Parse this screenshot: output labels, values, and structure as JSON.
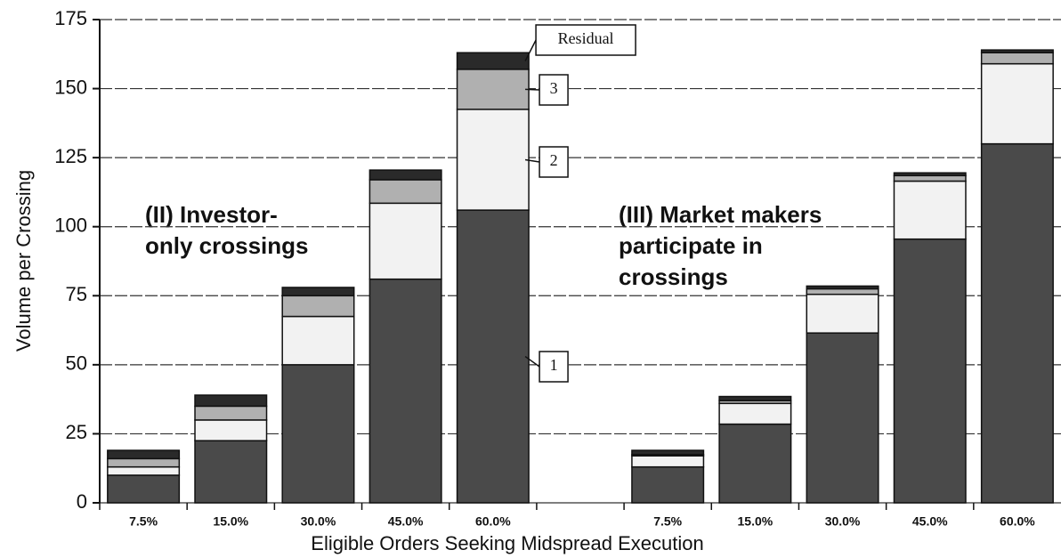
{
  "chart_data": {
    "type": "stacked_bar",
    "x_label": "Eligible Orders Seeking Midspread Execution",
    "y_label": "Volume per Crossing",
    "categories": [
      "7.5%",
      "15.0%",
      "30.0%",
      "45.0%",
      "60.0%",
      null,
      "7.5%",
      "15.0%",
      "30.0%",
      "45.0%",
      "60.0%"
    ],
    "series": [
      {
        "name": "1",
        "color": "#4a4a4a",
        "values": [
          10,
          22.5,
          50,
          81,
          106,
          null,
          13,
          28.5,
          61.5,
          95.5,
          130
        ]
      },
      {
        "name": "2",
        "color": "#f2f2f2",
        "values": [
          3,
          7.5,
          17.5,
          27.5,
          36.5,
          null,
          4,
          7.5,
          14,
          21,
          29
        ]
      },
      {
        "name": "3",
        "color": "#b0b0b0",
        "values": [
          3,
          5,
          7.5,
          8.5,
          14.5,
          null,
          0.5,
          1,
          2,
          2,
          4
        ]
      },
      {
        "name": "Residual",
        "color": "#2a2a2a",
        "values": [
          3,
          4,
          3,
          3.5,
          6,
          null,
          1.5,
          1.5,
          1,
          1,
          1
        ]
      }
    ],
    "annotations": [
      "(II) Investor-",
      "only crossings",
      "(III) Market makers",
      "participate in",
      "crossings"
    ],
    "ylim": [
      0,
      175
    ],
    "yticks": [
      0,
      25,
      50,
      75,
      100,
      125,
      150,
      175
    ],
    "grid": true
  }
}
